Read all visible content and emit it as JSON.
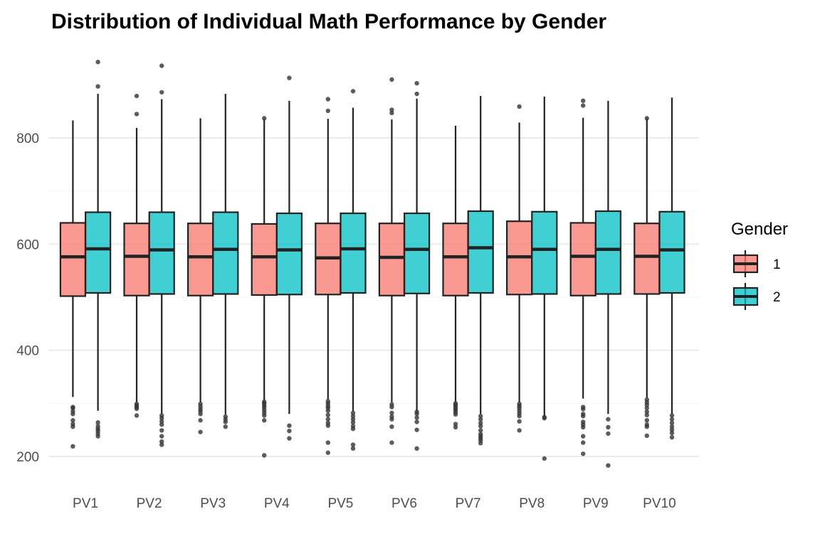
{
  "chart_data": {
    "type": "boxplot",
    "title": "Distribution of Individual Math Performance by Gender",
    "xlabel": "",
    "ylabel": "",
    "ylim": [
      120,
      960
    ],
    "yticks": [
      200,
      400,
      600,
      800
    ],
    "grid": true,
    "legend": {
      "title": "Gender",
      "placement": "right"
    },
    "colors": {
      "1": "#F8766D",
      "2": "#00BFC4"
    },
    "categories": [
      "PV1",
      "PV2",
      "PV3",
      "PV4",
      "PV5",
      "PV6",
      "PV7",
      "PV8",
      "PV9",
      "PV10"
    ],
    "series": [
      {
        "name": "1",
        "boxes": [
          {
            "whisker_low": 312,
            "q1": 502,
            "median": 576,
            "q3": 640,
            "whisker_high": 833,
            "outliers": [
              219,
              256,
              261,
              268,
              280,
              285,
              291,
              293
            ]
          },
          {
            "whisker_low": 302,
            "q1": 503,
            "median": 577,
            "q3": 639,
            "whisker_high": 819,
            "outliers": [
              277,
              290,
              293,
              296,
              299,
              845,
              879
            ]
          },
          {
            "whisker_low": 302,
            "q1": 503,
            "median": 576,
            "q3": 639,
            "whisker_high": 837,
            "outliers": [
              246,
              268,
              280,
              285,
              289,
              294,
              299
            ]
          },
          {
            "whisker_low": 305,
            "q1": 504,
            "median": 576,
            "q3": 638,
            "whisker_high": 835,
            "outliers": [
              202,
              268,
              277,
              282,
              287,
              292,
              296,
              300,
              303,
              837
            ]
          },
          {
            "whisker_low": 307,
            "q1": 505,
            "median": 574,
            "q3": 639,
            "whisker_high": 836,
            "outliers": [
              207,
              226,
              258,
              263,
              270,
              278,
              286,
              291,
              295,
              300,
              304,
              851,
              873
            ]
          },
          {
            "whisker_low": 302,
            "q1": 503,
            "median": 575,
            "q3": 639,
            "whisker_high": 835,
            "outliers": [
              226,
              256,
              270,
              275,
              282,
              293,
              298,
              847,
              853,
              910
            ]
          },
          {
            "whisker_low": 302,
            "q1": 503,
            "median": 576,
            "q3": 639,
            "whisker_high": 823,
            "outliers": [
              255,
              261,
              279,
              283,
              287,
              290,
              294,
              297,
              300
            ]
          },
          {
            "whisker_low": 302,
            "q1": 505,
            "median": 576,
            "q3": 643,
            "whisker_high": 829,
            "outliers": [
              249,
              266,
              276,
              281,
              286,
              291,
              295,
              299,
              859
            ]
          },
          {
            "whisker_low": 309,
            "q1": 503,
            "median": 577,
            "q3": 640,
            "whisker_high": 838,
            "outliers": [
              205,
              226,
              238,
              255,
              260,
              265,
              276,
              280,
              289,
              293,
              861,
              870
            ]
          },
          {
            "whisker_low": 310,
            "q1": 506,
            "median": 577,
            "q3": 639,
            "whisker_high": 836,
            "outliers": [
              239,
              256,
              260,
              268,
              278,
              284,
              291,
              297,
              302,
              307,
              837
            ]
          }
        ]
      },
      {
        "name": "2",
        "boxes": [
          {
            "whisker_low": 286,
            "q1": 508,
            "median": 591,
            "q3": 660,
            "whisker_high": 883,
            "outliers": [
              238,
              243,
              248,
              252,
              257,
              264,
              897,
              943
            ]
          },
          {
            "whisker_low": 280,
            "q1": 506,
            "median": 589,
            "q3": 660,
            "whisker_high": 873,
            "outliers": [
              222,
              228,
              238,
              249,
              260,
              266,
              272,
              277,
              886,
              936
            ]
          },
          {
            "whisker_low": 279,
            "q1": 506,
            "median": 590,
            "q3": 660,
            "whisker_high": 883,
            "outliers": [
              256,
              265,
              270,
              275
            ]
          },
          {
            "whisker_low": 280,
            "q1": 505,
            "median": 589,
            "q3": 658,
            "whisker_high": 870,
            "outliers": [
              234,
              248,
              258,
              913
            ]
          },
          {
            "whisker_low": 285,
            "q1": 508,
            "median": 591,
            "q3": 658,
            "whisker_high": 857,
            "outliers": [
              215,
              222,
              252,
              257,
              264,
              270,
              276,
              282,
              888
            ]
          },
          {
            "whisker_low": 285,
            "q1": 507,
            "median": 590,
            "q3": 658,
            "whisker_high": 874,
            "outliers": [
              215,
              250,
              265,
              273,
              280,
              284,
              883,
              903
            ]
          },
          {
            "whisker_low": 280,
            "q1": 508,
            "median": 593,
            "q3": 662,
            "whisker_high": 879,
            "outliers": [
              225,
              230,
              234,
              238,
              242,
              249,
              257,
              263,
              270,
              276
            ]
          },
          {
            "whisker_low": 275,
            "q1": 506,
            "median": 590,
            "q3": 661,
            "whisker_high": 878,
            "outliers": [
              196,
              272,
              274
            ]
          },
          {
            "whisker_low": 280,
            "q1": 506,
            "median": 590,
            "q3": 662,
            "whisker_high": 870,
            "outliers": [
              183,
              243,
              255,
              270
            ]
          },
          {
            "whisker_low": 280,
            "q1": 508,
            "median": 589,
            "q3": 661,
            "whisker_high": 876,
            "outliers": [
              236,
              244,
              250,
              256,
              263,
              270,
              277
            ]
          }
        ]
      }
    ]
  }
}
